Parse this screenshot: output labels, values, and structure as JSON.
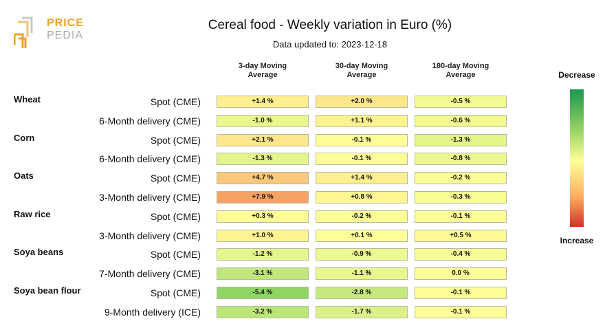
{
  "logo": {
    "top": "PRICE",
    "bottom": "PEDIA"
  },
  "chart_data": {
    "type": "table",
    "title": "Cereal food - Weekly variation in Euro (%)",
    "subtitle": "Data updated to: 2023-12-18",
    "columns": [
      "3-day Moving Average",
      "30-day Moving Average",
      "180-day Moving Average"
    ],
    "column_lines": [
      [
        "3-day Moving",
        "Average"
      ],
      [
        "30-day Moving",
        "Average"
      ],
      [
        "180-day Moving",
        "Average"
      ]
    ],
    "legend": {
      "top": "Decrease",
      "bottom": "Increase"
    },
    "groups": [
      {
        "name": "Wheat",
        "rows": [
          {
            "label": "Spot (CME)",
            "values": [
              1.4,
              2.0,
              -0.5
            ],
            "text": [
              "+1.4 %",
              "+2.0 %",
              "-0.5 %"
            ]
          },
          {
            "label": "6-Month delivery (CME)",
            "values": [
              -1.0,
              1.1,
              -0.6
            ],
            "text": [
              "-1.0 %",
              "+1.1 %",
              "-0.6 %"
            ]
          }
        ]
      },
      {
        "name": "Corn",
        "rows": [
          {
            "label": "Spot (CME)",
            "values": [
              2.1,
              -0.1,
              -1.3
            ],
            "text": [
              "+2.1 %",
              "-0.1 %",
              "-1.3 %"
            ]
          },
          {
            "label": "6-Month delivery (CME)",
            "values": [
              -1.3,
              -0.1,
              -0.8
            ],
            "text": [
              "-1.3 %",
              "-0.1 %",
              "-0.8 %"
            ]
          }
        ]
      },
      {
        "name": "Oats",
        "rows": [
          {
            "label": "Spot (CME)",
            "values": [
              4.7,
              1.4,
              -0.2
            ],
            "text": [
              "+4.7 %",
              "+1.4 %",
              "-0.2 %"
            ]
          },
          {
            "label": "3-Month delivery (CME)",
            "values": [
              7.9,
              0.8,
              -0.3
            ],
            "text": [
              "+7.9 %",
              "+0.8 %",
              "-0.3 %"
            ]
          }
        ]
      },
      {
        "name": "Raw rice",
        "rows": [
          {
            "label": "Spot (CME)",
            "values": [
              0.3,
              -0.2,
              -0.1
            ],
            "text": [
              "+0.3 %",
              "-0.2 %",
              "-0.1 %"
            ]
          },
          {
            "label": "3-Month delivery (CME)",
            "values": [
              1.0,
              0.1,
              0.5
            ],
            "text": [
              "+1.0 %",
              "+0.1 %",
              "+0.5 %"
            ]
          }
        ]
      },
      {
        "name": "Soya beans",
        "rows": [
          {
            "label": "Spot (CME)",
            "values": [
              -1.2,
              -0.9,
              -0.4
            ],
            "text": [
              "-1.2 %",
              "-0.9 %",
              "-0.4 %"
            ]
          },
          {
            "label": "7-Month delivery (CME)",
            "values": [
              -3.1,
              -1.1,
              0.0
            ],
            "text": [
              "-3.1 %",
              "-1.1 %",
              "0.0 %"
            ]
          }
        ]
      },
      {
        "name": "Soya bean flour",
        "rows": [
          {
            "label": "Spot (CME)",
            "values": [
              -5.4,
              -2.8,
              -0.1
            ],
            "text": [
              "-5.4 %",
              "-2.8 %",
              "-0.1 %"
            ]
          },
          {
            "label": "9-Month delivery (ICE)",
            "values": [
              -3.2,
              -1.7,
              -0.1
            ],
            "text": [
              "-3.2 %",
              "-1.7 %",
              "-0.1 %"
            ]
          }
        ]
      }
    ]
  }
}
